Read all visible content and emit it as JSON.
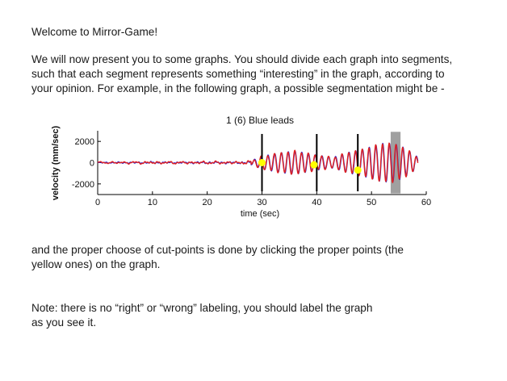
{
  "intro": {
    "welcome": "Welcome to Mirror-Game!",
    "para1_line1": "We will now present you to some graphs. You should divide each graph into segments,",
    "para1_line2": "such that each segment represents something “interesting” in the graph, according to",
    "para1_line3": "your opinion. For example, in the following graph, a possible segmentation might be -",
    "para2_line1": "and the proper choose of cut-points is done by clicking the proper points (the",
    "para2_line2": "yellow ones) on the graph.",
    "note_line1": "Note: there is no “right” or “wrong” labeling,  you should label the graph",
    "note_line2": "as you see it."
  },
  "chart_data": {
    "type": "line",
    "title": "1 (6) Blue leads",
    "xlabel": "time (sec)",
    "ylabel": "velocity (mm/sec)",
    "xlim": [
      0,
      60
    ],
    "ylim": [
      -3000,
      3000
    ],
    "x_ticks": [
      0,
      10,
      20,
      30,
      40,
      50,
      60
    ],
    "y_ticks": [
      -2000,
      0,
      2000
    ],
    "series": [
      {
        "color": "#1f1fd6",
        "values_description": ""
      },
      {
        "color": "#e02020",
        "values_description": ""
      }
    ],
    "envelope": {
      "x": [
        0,
        5,
        10,
        15,
        20,
        25,
        28,
        30,
        33,
        36,
        40,
        43,
        46,
        48,
        50,
        52,
        54,
        56,
        58.5
      ],
      "amplitude": [
        60,
        80,
        120,
        90,
        120,
        110,
        180,
        600,
        900,
        1100,
        700,
        500,
        1000,
        1200,
        1500,
        1800,
        1800,
        1400,
        500
      ]
    },
    "cut_points": [
      {
        "x": 30,
        "y": 0
      },
      {
        "x": 39.5,
        "y": -200
      },
      {
        "x": 47.5,
        "y": -700
      }
    ],
    "cut_lines_x": [
      30,
      40,
      47.5
    ],
    "shaded_region": {
      "x_start": 53.5,
      "x_end": 55.3
    },
    "colors": {
      "cut_point": "#ffff00",
      "cut_line": "#000000",
      "shade": "#a0a0a0"
    }
  }
}
